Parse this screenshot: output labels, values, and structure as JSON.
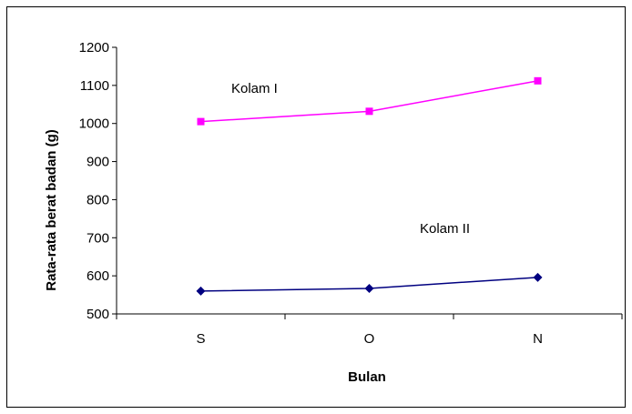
{
  "chart_data": {
    "type": "line",
    "categories": [
      "S",
      "O",
      "N"
    ],
    "xlabel": "Bulan",
    "ylabel": "Rata-rata berat badan (g)",
    "ylim": [
      500,
      1200
    ],
    "yticks": [
      "500",
      "600",
      "700",
      "800",
      "900",
      "1000",
      "1100",
      "1200"
    ],
    "grid": false,
    "series": [
      {
        "name": "Kolam I",
        "color": "#ff00ff",
        "marker": "square",
        "values": [
          1005,
          1032,
          1112
        ]
      },
      {
        "name": "Kolam II",
        "color": "#000080",
        "marker": "diamond",
        "values": [
          560,
          567,
          596
        ]
      }
    ],
    "annotations": [
      "Kolam I",
      "Kolam II"
    ]
  }
}
